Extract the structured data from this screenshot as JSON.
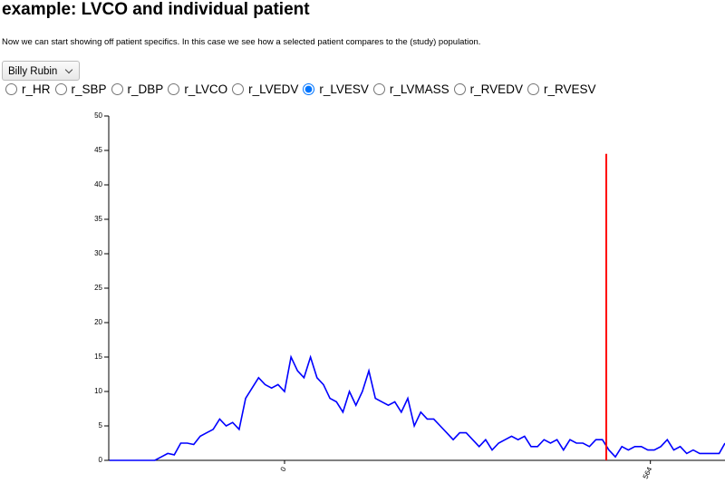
{
  "header": {
    "title": "example: LVCO and individual patient"
  },
  "description": "Now we can start showing off patient specifics. In this case we see how a selected patient compares to the (study) population.",
  "select": {
    "label": "Billy Rubin"
  },
  "radios": {
    "options": [
      "r_HR",
      "r_SBP",
      "r_DBP",
      "r_LVCO",
      "r_LVEDV",
      "r_LVESV",
      "r_LVMASS",
      "r_RVEDV",
      "r_RVESV"
    ],
    "selected": 5
  },
  "chart_data": {
    "type": "line",
    "color": "#0000ff",
    "x": [
      -270,
      -260,
      -250,
      -240,
      -230,
      -220,
      -210,
      -200,
      -190,
      -180,
      -170,
      -160,
      -150,
      -140,
      -130,
      -120,
      -110,
      -100,
      -90,
      -80,
      -70,
      -60,
      -50,
      -40,
      -30,
      -20,
      -10,
      0,
      10,
      20,
      30,
      40,
      50,
      60,
      70,
      80,
      90,
      100,
      110,
      120,
      130,
      140,
      150,
      160,
      170,
      180,
      190,
      200,
      210,
      220,
      230,
      240,
      250,
      260,
      270,
      280,
      290,
      300,
      310,
      320,
      330,
      340,
      350,
      360,
      370,
      380,
      390,
      400,
      410,
      420,
      430,
      440,
      450,
      460,
      470,
      480,
      490,
      500,
      510,
      520,
      530,
      540,
      550,
      560,
      570,
      580,
      590,
      600,
      610,
      620,
      630,
      640,
      650,
      660,
      670,
      679
    ],
    "values": [
      0,
      0,
      0,
      0,
      0,
      0,
      0,
      0,
      0.5,
      1,
      0.8,
      2.5,
      2.5,
      2.3,
      3.5,
      4,
      4.5,
      6,
      5,
      5.5,
      4.5,
      9,
      10.5,
      12,
      11,
      10.5,
      11,
      10,
      15,
      13,
      12,
      15,
      12,
      11,
      9,
      8.5,
      7,
      10,
      8,
      10,
      13,
      9,
      8.5,
      8,
      8.5,
      7,
      9,
      5,
      7,
      6,
      6,
      5,
      4,
      3,
      4,
      4,
      3,
      2,
      3,
      1.5,
      2.5,
      3,
      3.5,
      3,
      3.5,
      2,
      2,
      3,
      2.5,
      3,
      1.5,
      3,
      2.5,
      2.5,
      2,
      3,
      3,
      1.5,
      0.5,
      2,
      1.5,
      2,
      2,
      1.5,
      1.5,
      2,
      3,
      1.5,
      2,
      1,
      1.5,
      1,
      1,
      1,
      1,
      2.5
    ],
    "marker": {
      "x": 496,
      "y": 44.5,
      "color": "#ff0000"
    },
    "xlim": [
      -271,
      679
    ],
    "xticks": [
      0,
      564
    ],
    "ylim": [
      0,
      50
    ],
    "yticks": [
      0,
      5,
      10,
      15,
      20,
      25,
      30,
      35,
      40,
      45,
      50
    ]
  }
}
